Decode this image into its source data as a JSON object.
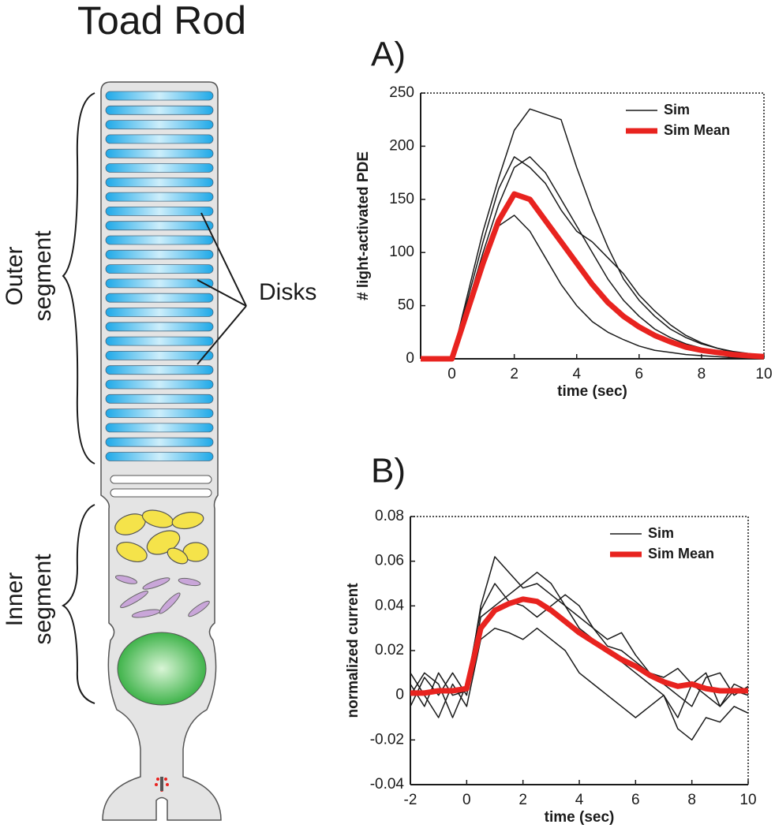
{
  "diagram": {
    "title": "Toad Rod",
    "outer_segment": [
      "Outer",
      "segment"
    ],
    "inner_segment": [
      "Inner",
      "segment"
    ],
    "disks": "Disks"
  },
  "chart_data": [
    {
      "type": "line",
      "label": "A)",
      "xlabel": "time (sec)",
      "ylabel": "# light-activated PDE",
      "xlim": [
        -1,
        10
      ],
      "xticks": [
        0,
        2,
        4,
        6,
        8,
        10
      ],
      "ylim": [
        0,
        250
      ],
      "yticks": [
        0,
        50,
        100,
        150,
        200,
        250
      ],
      "legend": "upper right",
      "x": [
        -1,
        -0.5,
        0,
        0.5,
        1,
        1.5,
        2,
        2.5,
        3,
        3.5,
        4,
        4.5,
        5,
        5.5,
        6,
        6.5,
        7,
        7.5,
        8,
        8.5,
        9,
        9.5,
        10
      ],
      "series": [
        {
          "name": "Sim",
          "color": "#1a1a1a",
          "line_width": 1.5,
          "values": [
            0,
            0,
            0,
            60,
            120,
            170,
            215,
            235,
            230,
            225,
            180,
            140,
            105,
            75,
            55,
            40,
            28,
            20,
            14,
            10,
            7,
            5,
            3
          ]
        },
        {
          "color": "#1a1a1a",
          "line_width": 1.5,
          "values": [
            0,
            0,
            0,
            50,
            100,
            145,
            180,
            190,
            175,
            150,
            125,
            100,
            75,
            55,
            40,
            28,
            20,
            14,
            10,
            7,
            5,
            3,
            2
          ]
        },
        {
          "color": "#1a1a1a",
          "line_width": 1.5,
          "values": [
            0,
            0,
            0,
            45,
            95,
            125,
            135,
            120,
            95,
            70,
            50,
            35,
            25,
            18,
            12,
            8,
            6,
            4,
            3,
            2,
            1,
            1,
            0
          ]
        },
        {
          "color": "#1a1a1a",
          "line_width": 1.5,
          "values": [
            0,
            0,
            0,
            55,
            110,
            160,
            190,
            180,
            165,
            140,
            120,
            110,
            95,
            80,
            60,
            45,
            32,
            22,
            15,
            10,
            6,
            4,
            3
          ]
        },
        {
          "name": "Sim Mean",
          "color": "#e8231f",
          "line_width": 7,
          "values": [
            0,
            0,
            0,
            45,
            90,
            130,
            155,
            150,
            130,
            110,
            90,
            70,
            53,
            40,
            30,
            22,
            16,
            11,
            8,
            6,
            4,
            3,
            2
          ]
        }
      ]
    },
    {
      "type": "line",
      "label": "B)",
      "xlabel": "time (sec)",
      "ylabel": "normalized current",
      "xlim": [
        -2,
        10
      ],
      "xticks": [
        -2,
        0,
        2,
        4,
        6,
        8,
        10
      ],
      "ylim": [
        -0.04,
        0.08
      ],
      "yticks": [
        -0.04,
        -0.02,
        0,
        0.02,
        0.04,
        0.06,
        0.08
      ],
      "legend": "upper right",
      "x": [
        -2,
        -1.5,
        -1,
        -0.5,
        0,
        0.5,
        1,
        1.5,
        2,
        2.5,
        3,
        3.5,
        4,
        4.5,
        5,
        5.5,
        6,
        6.5,
        7,
        7.5,
        8,
        8.5,
        9,
        9.5,
        10
      ],
      "series": [
        {
          "name": "Sim",
          "color": "#1a1a1a",
          "line_width": 1.5,
          "values": [
            0.005,
            -0.005,
            0.01,
            0.0,
            0.002,
            0.04,
            0.062,
            0.055,
            0.048,
            0.05,
            0.045,
            0.04,
            0.03,
            0.025,
            0.02,
            0.015,
            0.01,
            0.005,
            0.0,
            -0.01,
            0.005,
            0.0,
            -0.005,
            0.002,
            0.0
          ]
        },
        {
          "color": "#1a1a1a",
          "line_width": 1.5,
          "values": [
            -0.005,
            0.008,
            0.0,
            0.01,
            0.0,
            0.035,
            0.04,
            0.045,
            0.05,
            0.055,
            0.05,
            0.04,
            0.035,
            0.03,
            0.022,
            0.02,
            0.015,
            0.01,
            0.008,
            0.012,
            0.005,
            0.01,
            -0.005,
            0.005,
            0.002
          ]
        },
        {
          "color": "#1a1a1a",
          "line_width": 1.5,
          "values": [
            0.01,
            0.0,
            -0.01,
            0.005,
            -0.005,
            0.025,
            0.03,
            0.028,
            0.025,
            0.03,
            0.025,
            0.02,
            0.01,
            0.005,
            0.0,
            -0.005,
            -0.01,
            -0.005,
            0.0,
            -0.015,
            -0.02,
            -0.01,
            -0.012,
            -0.005,
            -0.008
          ]
        },
        {
          "color": "#1a1a1a",
          "line_width": 1.5,
          "values": [
            0.0,
            0.01,
            0.005,
            -0.01,
            0.005,
            0.038,
            0.05,
            0.042,
            0.04,
            0.035,
            0.04,
            0.045,
            0.04,
            0.03,
            0.025,
            0.028,
            0.018,
            0.01,
            0.005,
            0.0,
            -0.005,
            0.008,
            0.01,
            0.0,
            0.004
          ]
        },
        {
          "name": "Sim Mean",
          "color": "#e8231f",
          "line_width": 7,
          "values": [
            0.001,
            0.001,
            0.002,
            0.002,
            0.003,
            0.03,
            0.038,
            0.041,
            0.043,
            0.042,
            0.038,
            0.033,
            0.028,
            0.024,
            0.02,
            0.016,
            0.013,
            0.009,
            0.006,
            0.004,
            0.005,
            0.003,
            0.002,
            0.002,
            0.002
          ]
        }
      ]
    }
  ]
}
